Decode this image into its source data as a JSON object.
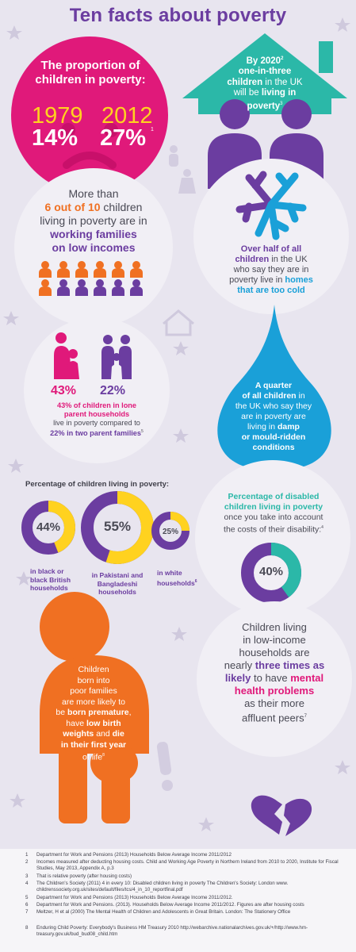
{
  "title": "Ten facts about poverty",
  "fact1": {
    "heading_line1": "The proportion of",
    "heading_line2": "children in poverty:",
    "year1": "1979",
    "year2": "2012",
    "pct1": "14%",
    "pct2": "27%",
    "ref": "1"
  },
  "fact2": {
    "l1": "By 2020",
    "l1_ref": "2",
    "l2": "one-in-three",
    "l3": "children",
    "l3b": " in the UK",
    "l4": "will be ",
    "l4b": "living in",
    "l5": "poverty",
    "l5_ref": "3"
  },
  "fact3": {
    "l1": "More than",
    "l2a": "6 out of 10",
    "l2b": " children",
    "l3": "living in poverty are in",
    "l4": "working families",
    "l5": "on low incomes"
  },
  "fact4": {
    "l1": "Over half of all",
    "l2": "children",
    "l2b": " in the UK",
    "l3": "who say they are in",
    "l4a": "poverty live in ",
    "l4b": "homes",
    "l5": "that are too cold"
  },
  "fact5": {
    "pct_a": "43%",
    "pct_b": "22%",
    "l1": "43% of children in lone",
    "l2": "parent households",
    "l3": "live in poverty compared to",
    "l4": "22% in two parent families",
    "ref": "5"
  },
  "fact6": {
    "l1": "A quarter",
    "l2": "of all children",
    "l2b": " in",
    "l3": "the UK who say they",
    "l4": "are in poverty are",
    "l5a": "living in ",
    "l5b": "damp",
    "l6": "or mould-ridden",
    "l7": "conditions"
  },
  "fact7": {
    "heading": "Percentage of children living in poverty:",
    "donuts": [
      {
        "pct": "44%",
        "value": 44,
        "label_l1": "in black or",
        "label_l2": "black British",
        "label_l3": "households"
      },
      {
        "pct": "55%",
        "value": 55,
        "label_l1": "in Pakistani and",
        "label_l2": "Bangladeshi",
        "label_l3": "households"
      },
      {
        "pct": "25%",
        "value": 25,
        "label_l1": "in white",
        "label_l2": "households",
        "label_ref": "6"
      }
    ]
  },
  "fact8": {
    "l1": "Percentage of disabled",
    "l2": "children living in poverty",
    "l3": "once you take into account",
    "l4": "the costs of their disability:",
    "ref": "4",
    "pct": "40%",
    "value": 40
  },
  "fact9": {
    "l1": "Children",
    "l2": "born into",
    "l3": "poor families",
    "l4": "are more likely to",
    "l5a": "be ",
    "l5b": "born premature",
    "l5c": ",",
    "l6a": "have ",
    "l6b": "low birth",
    "l7a": "weights",
    "l7b": " and ",
    "l7c": "die",
    "l8": "in their first year",
    "l9": "of life",
    "l9_ref": "8"
  },
  "fact10": {
    "l1": "Children living",
    "l2": "in low-income",
    "l3": "households are",
    "l4a": "nearly ",
    "l4b": "three times as",
    "l5a": "likely",
    "l5b": " to have ",
    "l5c": "mental",
    "l6": "health problems",
    "l7": "as their more",
    "l8": "affluent peers",
    "ref": "7"
  },
  "footnotes": [
    {
      "n": "1",
      "t": "Department for Work and Pensions (2013) Households Below Average Income 2011/2012"
    },
    {
      "n": "2",
      "t": "Incomes measured after deducting housing costs. Child and Working Age Poverty in Northern Ireland from 2010 to 2020, Institute for Fiscal Studies, May 2013, Appendix A, p.3"
    },
    {
      "n": "3",
      "t": "That is relative poverty (after housing costs)"
    },
    {
      "n": "4",
      "t": "The Children's Society (2011) 4 in every 10: Disabled children living in poverty The Children's Society: London www. childrenssociety.org.uk/sites/default/files/tcs/4_in_10_reportfinal.pdf"
    },
    {
      "n": "5",
      "t": "Department for Work and Pensions (2013) Households Below Average Income 2011/2012."
    },
    {
      "n": "6",
      "t": "Department for Work and Pensions. (2013). Households Below Average Income 2011/2012. Figures are after housing costs"
    },
    {
      "n": "7",
      "t": "Meltzer, H et al (2000) The Mental Health of Children and Adolescents in Great Britain. London: The Stationery Office"
    },
    {
      "n": "8",
      "t": "Enduring Child Poverty: Everybody's Business HM Treasury 2010 http://webarchive.nationalarchives.gov.uk/+/http://www.hm-treasury.gov.uk/bud_bud08_child.htm"
    }
  ],
  "colors": {
    "purple": "#6b3da0",
    "pink": "#e0197a",
    "teal": "#2bb8a8",
    "blue": "#1aa0d8",
    "orange": "#f07022",
    "yellow": "#ffd21f"
  },
  "icons": [
    "star-icon",
    "house-icon",
    "snowflake-icon",
    "water-drop-icon",
    "family-icon",
    "broken-heart-icon",
    "exclamation-icon"
  ]
}
